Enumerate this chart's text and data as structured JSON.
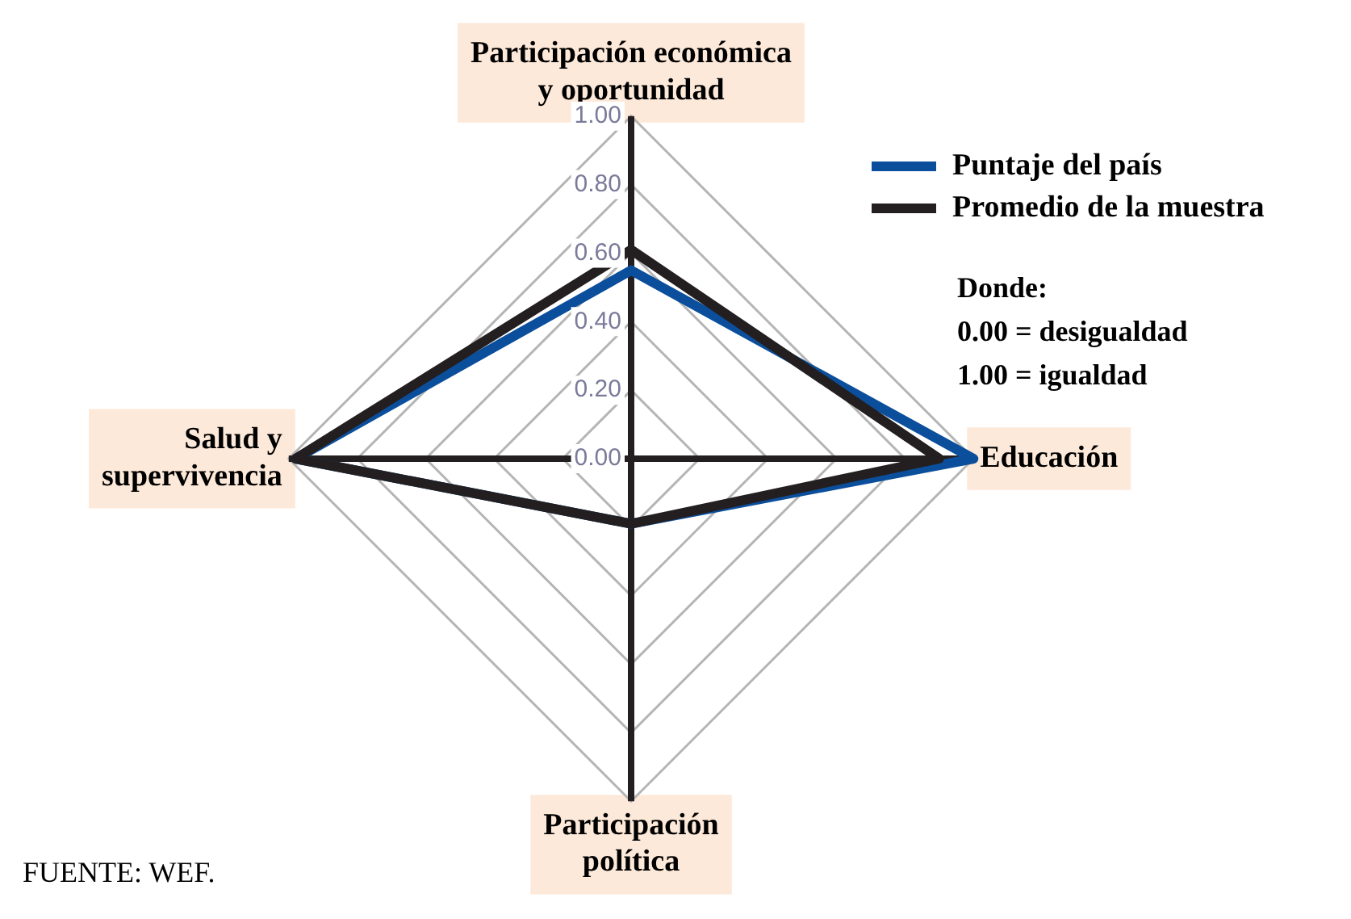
{
  "chart_data": {
    "type": "radar",
    "categories": [
      "Participación económica\ny oportunidad",
      "Educación",
      "Participación\npolítica",
      "Salud y\nsupervivencia"
    ],
    "series": [
      {
        "name": "Puntaje del país",
        "color": "#0b4f9c",
        "values": [
          0.55,
          1.0,
          0.19,
          0.98
        ]
      },
      {
        "name": "Promedio de la muestra",
        "color": "#231f20",
        "values": [
          0.61,
          0.9,
          0.19,
          0.98
        ]
      }
    ],
    "ylim": [
      0,
      1
    ],
    "yticks": [
      {
        "value": 0,
        "label": "0.00"
      },
      {
        "value": 0.2,
        "label": "0.20"
      },
      {
        "value": 0.4,
        "label": "0.40"
      },
      {
        "value": 0.6,
        "label": "0.60"
      },
      {
        "value": 0.8,
        "label": "0.80"
      },
      {
        "value": 1,
        "label": "1.00"
      }
    ],
    "grid": true,
    "legend": "top right",
    "marker": "none",
    "annotations": [
      "Donde:",
      "0.00 = desigualdad",
      "1.00 = igualdad",
      "FUENTE: WEF."
    ]
  }
}
